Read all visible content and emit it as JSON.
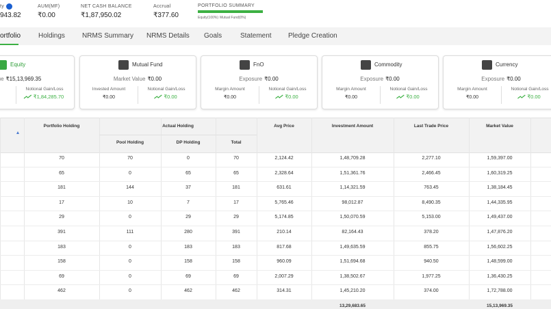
{
  "summary": {
    "items": [
      {
        "label": "ty",
        "value": "943.82"
      },
      {
        "label": "AUM(MF)",
        "value": "₹0.00"
      },
      {
        "label": "NET CASH BALANCE",
        "value": "₹1,87,950.02"
      },
      {
        "label": "Accrual",
        "value": "₹377.60"
      }
    ],
    "portfolio_summary": {
      "title": "PORTFOLIO SUMMARY",
      "legend": [
        "Equity(100%)",
        "Mutual Fund(0%)"
      ]
    }
  },
  "tabs": [
    "ortfolio",
    "Holdings",
    "NRMS Summary",
    "NRMS Details",
    "Goals",
    "Statement",
    "Pledge Creation"
  ],
  "cards": [
    {
      "title": "Equity",
      "headline_label": "Value",
      "headline_value": "₹15,13,969.35",
      "left_label": "nt",
      "left_value": "5",
      "right_label": "Notional Gain/Loss",
      "right_value": "₹1,84,285.70"
    },
    {
      "title": "Mutual Fund",
      "headline_label": "Market Value",
      "headline_value": "₹0.00",
      "left_label": "Invested Amount",
      "left_value": "₹0.00",
      "right_label": "Notional Gain/Loss",
      "right_value": "₹0.00"
    },
    {
      "title": "FnO",
      "headline_label": "Exposure",
      "headline_value": "₹0.00",
      "left_label": "Margin Amount",
      "left_value": "₹0.00",
      "right_label": "Notional Gain/Loss",
      "right_value": "₹0.00"
    },
    {
      "title": "Commodity",
      "headline_label": "Exposure",
      "headline_value": "₹0.00",
      "left_label": "Margin Amount",
      "left_value": "₹0.00",
      "right_label": "Notional Gain/Loss",
      "right_value": "₹0.00"
    },
    {
      "title": "Currency",
      "headline_label": "Exposure",
      "headline_value": "₹0.00",
      "left_label": "Margin Amount",
      "left_value": "₹0.00",
      "right_label": "Notional Gain/Loss",
      "right_value": "₹0.00"
    }
  ],
  "table": {
    "headers": [
      "Portfolio Holding",
      "Actual Holding",
      "Avg Price",
      "Investment Amount",
      "Last Trade Price",
      "Market Value"
    ],
    "sub_headers": [
      "Pool Holding",
      "DP Holding",
      "Total"
    ],
    "rows": [
      [
        "70",
        "70",
        "0",
        "70",
        "2,124.42",
        "1,48,709.28",
        "2,277.10",
        "1,59,397.00"
      ],
      [
        "65",
        "0",
        "65",
        "65",
        "2,328.64",
        "1,51,361.76",
        "2,466.45",
        "1,60,319.25"
      ],
      [
        "181",
        "144",
        "37",
        "181",
        "631.61",
        "1,14,321.59",
        "763.45",
        "1,38,184.45"
      ],
      [
        "17",
        "10",
        "7",
        "17",
        "5,765.46",
        "98,012.87",
        "8,490.35",
        "1,44,335.95"
      ],
      [
        "29",
        "0",
        "29",
        "29",
        "5,174.85",
        "1,50,070.59",
        "5,153.00",
        "1,49,437.00"
      ],
      [
        "391",
        "111",
        "280",
        "391",
        "210.14",
        "82,164.43",
        "378.20",
        "1,47,876.20"
      ],
      [
        "183",
        "0",
        "183",
        "183",
        "817.68",
        "1,49,635.59",
        "855.75",
        "1,56,602.25"
      ],
      [
        "158",
        "0",
        "158",
        "158",
        "960.09",
        "1,51,694.68",
        "940.50",
        "1,48,599.00"
      ],
      [
        "69",
        "0",
        "69",
        "69",
        "2,007.29",
        "1,38,502.67",
        "1,977.25",
        "1,36,430.25"
      ],
      [
        "462",
        "0",
        "462",
        "462",
        "314.31",
        "1,45,210.20",
        "374.00",
        "1,72,788.00"
      ]
    ],
    "total": {
      "investment": "13,29,683.65",
      "market_value": "15,13,969.35"
    }
  }
}
